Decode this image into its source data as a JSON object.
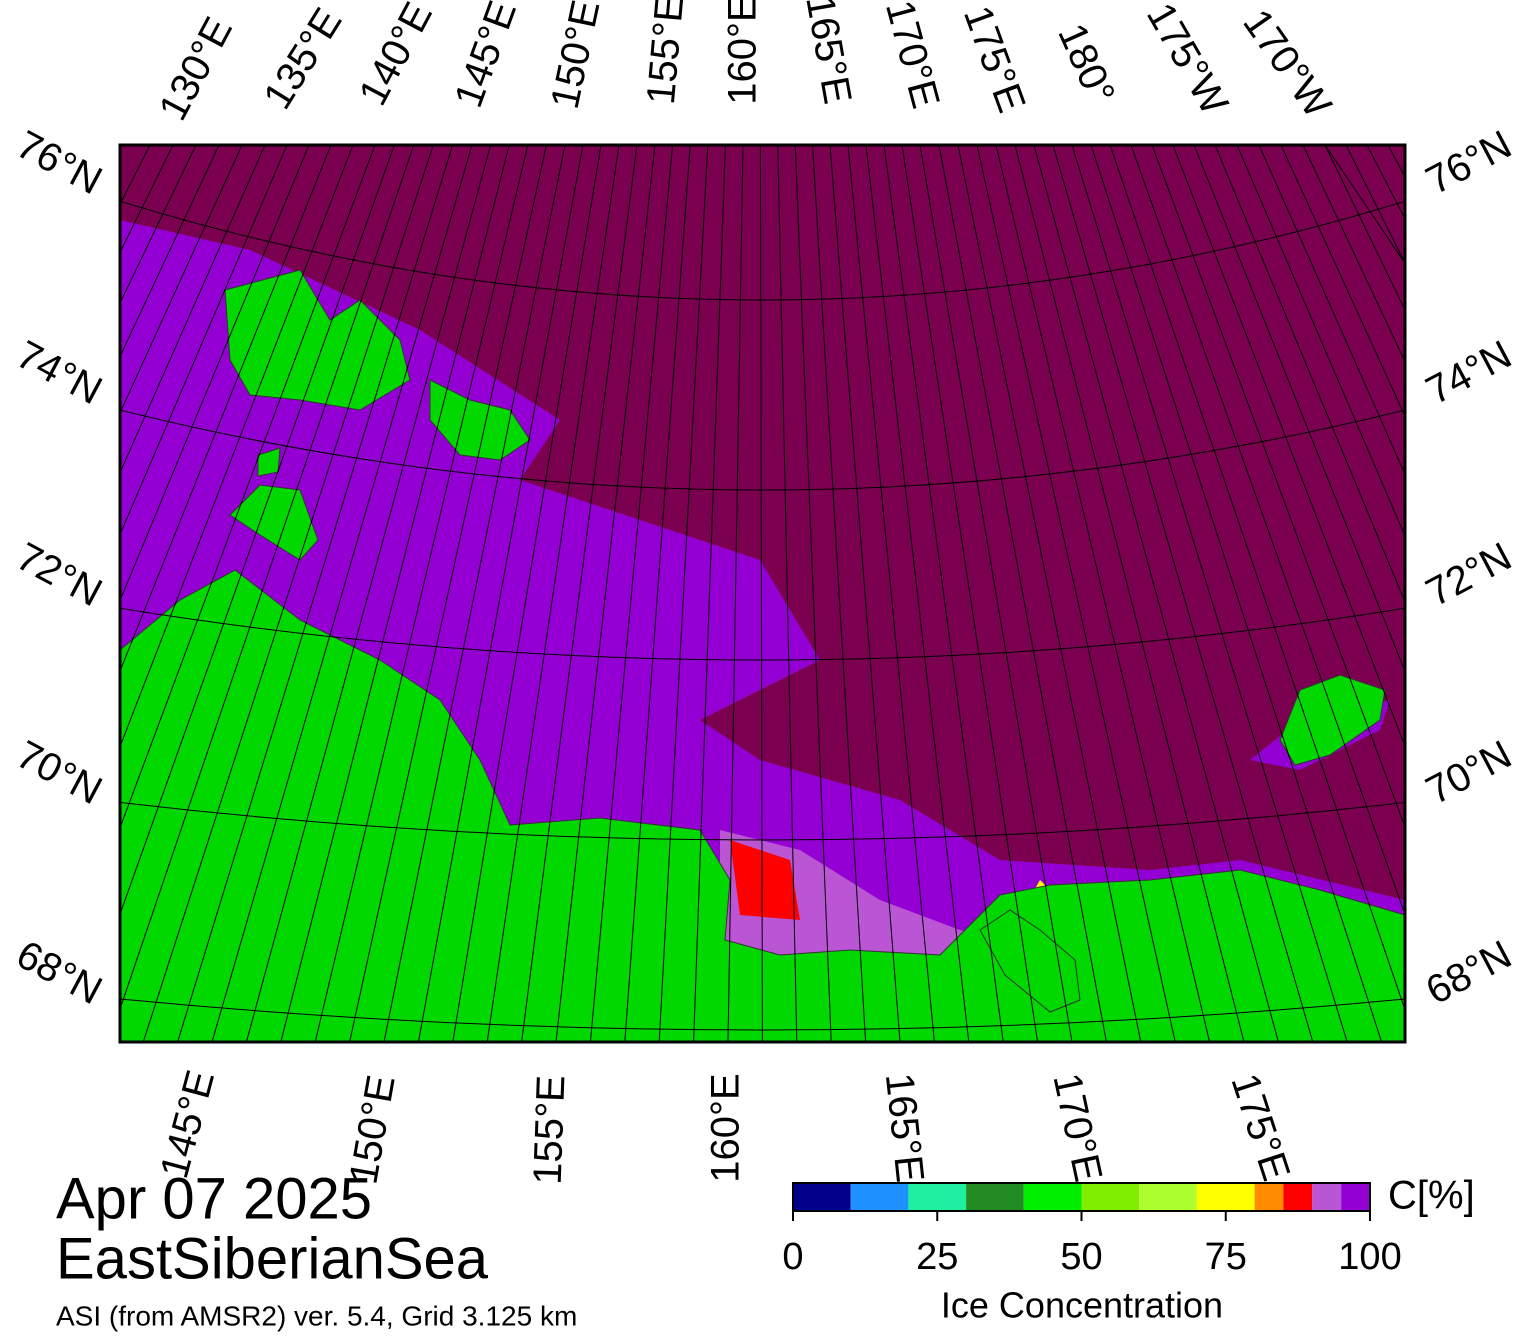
{
  "date": "Apr 07 2025",
  "region": "EastSiberianSea",
  "source": "ASI (from AMSR2) ver. 5.4,  Grid 3.125 km",
  "map": {
    "top_labels": [
      "130°E",
      "135°E",
      "140°E",
      "145°E",
      "150°E",
      "155°E",
      "160°E",
      "165°E",
      "170°E",
      "175°E",
      "180°",
      "175°W",
      "170°W"
    ],
    "bottom_labels": [
      "145°E",
      "150°E",
      "155°E",
      "160°E",
      "165°E",
      "170°E",
      "175°E"
    ],
    "left_labels": [
      "76°N",
      "74°N",
      "72°N",
      "70°N",
      "68°N"
    ],
    "right_labels": [
      "76°N",
      "74°N",
      "72°N",
      "70°N",
      "68°N"
    ]
  },
  "colorbar": {
    "label": "Ice Concentration",
    "unit": "C[%]",
    "lim": [
      0,
      100
    ],
    "ticks": [
      0,
      25,
      50,
      75,
      100
    ],
    "bins": [
      0,
      10,
      20,
      30,
      40,
      50,
      60,
      70,
      80,
      85,
      90,
      95,
      100
    ],
    "colors": [
      "#00008b",
      "#1e90ff",
      "#1ef0a0",
      "#228b22",
      "#00ee00",
      "#7fee00",
      "#adff2f",
      "#ffff00",
      "#ff8c00",
      "#ff0000",
      "#ba55d3",
      "#9400d3"
    ]
  }
}
